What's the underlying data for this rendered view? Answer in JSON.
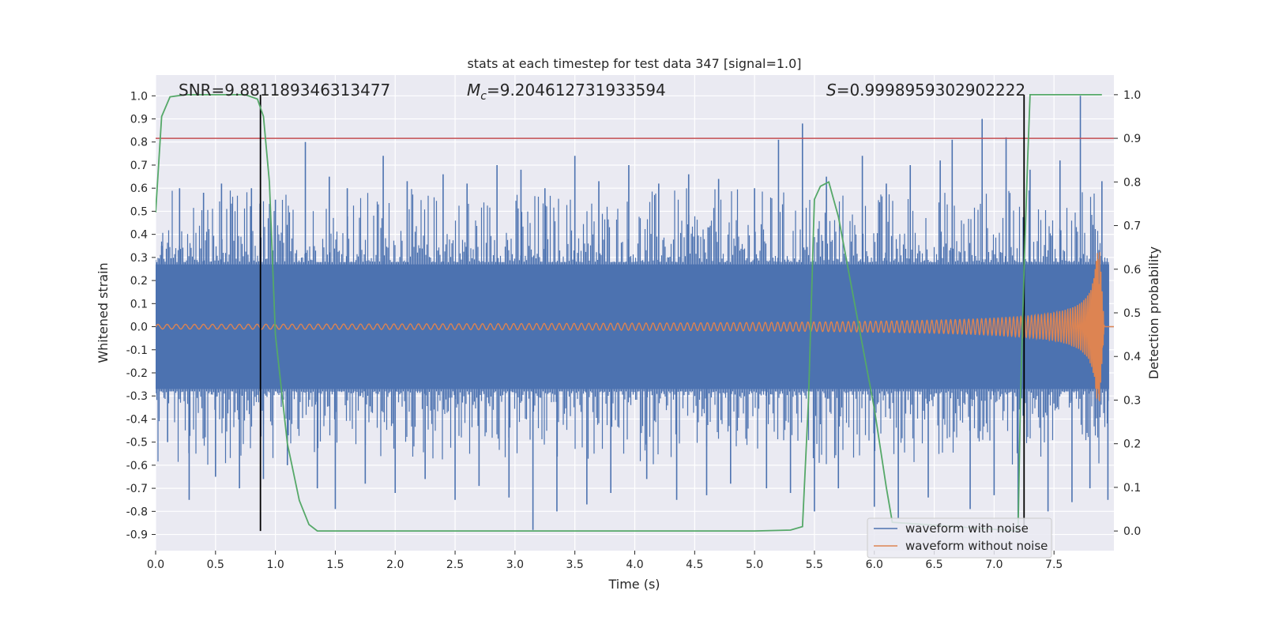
{
  "chart_data": {
    "type": "line",
    "title": "stats at each timestep for test data 347 [signal=1.0]",
    "xlabel": "Time (s)",
    "ylabel": "Whitened strain",
    "y2label": "Detection probability",
    "xlim": [
      0.0,
      8.0
    ],
    "ylim": [
      -0.97,
      1.09
    ],
    "y2lim": [
      -0.045,
      1.045
    ],
    "x_ticks": [
      "0.0",
      "0.5",
      "1.0",
      "1.5",
      "2.0",
      "2.5",
      "3.0",
      "3.5",
      "4.0",
      "4.5",
      "5.0",
      "5.5",
      "6.0",
      "6.5",
      "7.0",
      "7.5"
    ],
    "y_ticks": [
      "1.0",
      "0.9",
      "0.8",
      "0.7",
      "0.6",
      "0.5",
      "0.4",
      "0.3",
      "0.2",
      "0.1",
      "0.0",
      "-0.1",
      "-0.2",
      "-0.3",
      "-0.4",
      "-0.5",
      "-0.6",
      "-0.7",
      "-0.8",
      "-0.9"
    ],
    "y2_ticks": [
      "1.0",
      "0.9",
      "0.8",
      "0.7",
      "0.6",
      "0.5",
      "0.4",
      "0.3",
      "0.2",
      "0.1",
      "0.0"
    ],
    "annotations": {
      "snr": "SNR=9.881189346313477",
      "mc_symbol": "M",
      "mc_sub": "c",
      "mc_value": "=9.204612731933594",
      "s_symbol": "S",
      "s_value": "=0.9998959302902222"
    },
    "series": [
      {
        "name": "waveform with noise",
        "color": "#4c72b0",
        "band_core": 0.27,
        "spikes": [
          [
            0.05,
            0.35
          ],
          [
            0.1,
            -0.5
          ],
          [
            0.2,
            0.6
          ],
          [
            0.28,
            -0.75
          ],
          [
            0.4,
            0.58
          ],
          [
            0.5,
            -0.65
          ],
          [
            0.55,
            0.62
          ],
          [
            0.7,
            -0.7
          ],
          [
            0.8,
            0.6
          ],
          [
            0.9,
            -0.66
          ],
          [
            1.0,
            0.55
          ],
          [
            1.1,
            -0.6
          ],
          [
            1.25,
            0.8
          ],
          [
            1.35,
            -0.7
          ],
          [
            1.45,
            0.65
          ],
          [
            1.5,
            -0.79
          ],
          [
            1.6,
            0.6
          ],
          [
            1.75,
            -0.68
          ],
          [
            1.9,
            0.74
          ],
          [
            2.0,
            -0.72
          ],
          [
            2.1,
            0.63
          ],
          [
            2.25,
            -0.66
          ],
          [
            2.4,
            0.66
          ],
          [
            2.5,
            -0.75
          ],
          [
            2.6,
            0.62
          ],
          [
            2.7,
            -0.69
          ],
          [
            2.85,
            0.7
          ],
          [
            2.95,
            -0.74
          ],
          [
            3.05,
            0.68
          ],
          [
            3.15,
            -0.88
          ],
          [
            3.25,
            0.6
          ],
          [
            3.35,
            -0.8
          ],
          [
            3.5,
            0.74
          ],
          [
            3.6,
            -0.77
          ],
          [
            3.7,
            0.63
          ],
          [
            3.8,
            -0.72
          ],
          [
            3.95,
            0.7
          ],
          [
            4.1,
            -0.66
          ],
          [
            4.2,
            0.62
          ],
          [
            4.35,
            -0.75
          ],
          [
            4.45,
            0.66
          ],
          [
            4.6,
            -0.73
          ],
          [
            4.7,
            0.64
          ],
          [
            4.8,
            -0.68
          ],
          [
            5.0,
            0.6
          ],
          [
            5.1,
            -0.7
          ],
          [
            5.2,
            0.81
          ],
          [
            5.3,
            -0.72
          ],
          [
            5.4,
            0.88
          ],
          [
            5.5,
            -0.8
          ],
          [
            5.6,
            0.65
          ],
          [
            5.7,
            -0.7
          ],
          [
            5.9,
            0.74
          ],
          [
            6.0,
            -0.78
          ],
          [
            6.1,
            0.62
          ],
          [
            6.2,
            -0.83
          ],
          [
            6.3,
            0.7
          ],
          [
            6.45,
            -0.74
          ],
          [
            6.55,
            0.72
          ],
          [
            6.65,
            0.81
          ],
          [
            6.8,
            -0.79
          ],
          [
            6.9,
            0.9
          ],
          [
            7.0,
            -0.73
          ],
          [
            7.1,
            0.82
          ],
          [
            7.2,
            -0.85
          ],
          [
            7.3,
            0.68
          ],
          [
            7.45,
            -0.8
          ],
          [
            7.55,
            0.72
          ],
          [
            7.65,
            -0.76
          ],
          [
            7.72,
            1.0
          ],
          [
            7.8,
            -0.7
          ],
          [
            7.9,
            0.63
          ],
          [
            7.95,
            -0.75
          ]
        ]
      },
      {
        "name": "waveform without noise",
        "color": "#dd8452",
        "description_free_model": "chirp",
        "chirp": {
          "t_merge": 7.88,
          "t_end": 7.92,
          "amp_start": 0.01,
          "amp_peak": 0.35,
          "amp_min_neg": -0.28
        }
      },
      {
        "name": "",
        "axis": "right",
        "color": "#55a868",
        "x": [
          0.0,
          0.05,
          0.12,
          0.25,
          0.5,
          0.75,
          0.85,
          0.9,
          0.95,
          1.0,
          1.1,
          1.2,
          1.28,
          1.35,
          1.5,
          2.0,
          3.0,
          4.0,
          5.0,
          5.3,
          5.4,
          5.45,
          5.5,
          5.55,
          5.62,
          5.7,
          5.85,
          6.0,
          6.1,
          6.15,
          7.2,
          7.22,
          7.25,
          7.28,
          7.3,
          7.4,
          7.9
        ],
        "values": [
          0.73,
          0.95,
          0.995,
          1.0,
          1.0,
          1.0,
          0.99,
          0.95,
          0.8,
          0.45,
          0.2,
          0.07,
          0.015,
          0.0,
          0.0,
          0.0,
          0.0,
          0.0,
          0.0,
          0.002,
          0.01,
          0.3,
          0.76,
          0.79,
          0.8,
          0.72,
          0.5,
          0.28,
          0.1,
          0.02,
          0.0,
          0.3,
          0.6,
          0.85,
          1.0,
          1.0,
          1.0
        ]
      }
    ],
    "threshold_line": {
      "value": 0.9,
      "axis": "right",
      "color": "#c44e52"
    },
    "vertical_lines": [
      {
        "x": 0.875,
        "color": "#000000"
      },
      {
        "x": 7.25,
        "color": "#000000"
      }
    ],
    "legend_position": "lower right",
    "grid": true,
    "background": "#eaeaf2"
  }
}
